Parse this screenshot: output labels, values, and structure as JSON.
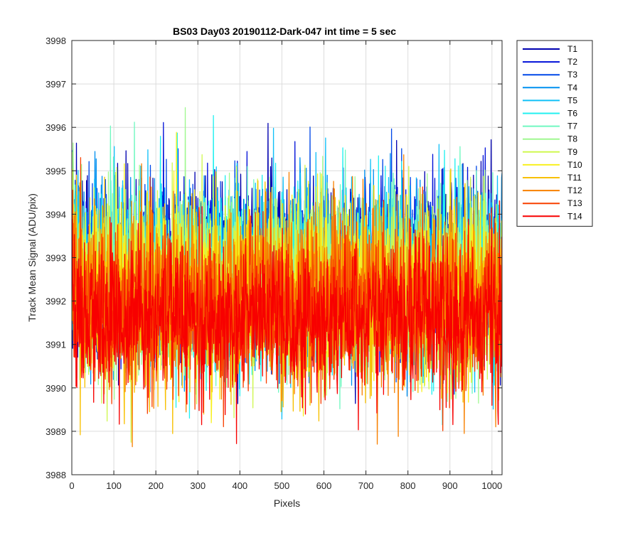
{
  "chart_data": {
    "type": "line",
    "title": "BS03 Day03 20190112-Dark-047 int time = 5 sec",
    "xlabel": "Pixels",
    "ylabel": "Track Mean Signal (ADU/pix)",
    "xlim": [
      0,
      1024
    ],
    "ylim": [
      3988,
      3998
    ],
    "xticks": [
      0,
      100,
      200,
      300,
      400,
      500,
      600,
      700,
      800,
      900,
      1000
    ],
    "yticks": [
      3988,
      3989,
      3990,
      3991,
      3992,
      3993,
      3994,
      3995,
      3996,
      3997,
      3998
    ],
    "grid": true,
    "legend_position": "outside-top-right",
    "x_points": 1024,
    "series": [
      {
        "name": "T1",
        "color": "#0000b0",
        "mean": 3992.9,
        "noise": 1.0
      },
      {
        "name": "T2",
        "color": "#0010d8",
        "mean": 3992.8,
        "noise": 1.0
      },
      {
        "name": "T3",
        "color": "#0048e8",
        "mean": 3992.7,
        "noise": 1.0
      },
      {
        "name": "T4",
        "color": "#0090f0",
        "mean": 3992.6,
        "noise": 1.0
      },
      {
        "name": "T5",
        "color": "#10c0f8",
        "mean": 3992.6,
        "noise": 1.0
      },
      {
        "name": "T6",
        "color": "#20f0f0",
        "mean": 3992.5,
        "noise": 1.0
      },
      {
        "name": "T7",
        "color": "#70f8c0",
        "mean": 3992.5,
        "noise": 1.0
      },
      {
        "name": "T8",
        "color": "#a0f890",
        "mean": 3992.4,
        "noise": 1.0
      },
      {
        "name": "T9",
        "color": "#d0f850",
        "mean": 3992.4,
        "noise": 1.0
      },
      {
        "name": "T10",
        "color": "#f8f020",
        "mean": 3992.3,
        "noise": 1.0
      },
      {
        "name": "T11",
        "color": "#f8c000",
        "mean": 3992.1,
        "noise": 1.0
      },
      {
        "name": "T12",
        "color": "#f88000",
        "mean": 3992.0,
        "noise": 1.0
      },
      {
        "name": "T13",
        "color": "#f84000",
        "mean": 3991.8,
        "noise": 0.9
      },
      {
        "name": "T14",
        "color": "#f80000",
        "mean": 3991.6,
        "noise": 0.9
      }
    ]
  }
}
